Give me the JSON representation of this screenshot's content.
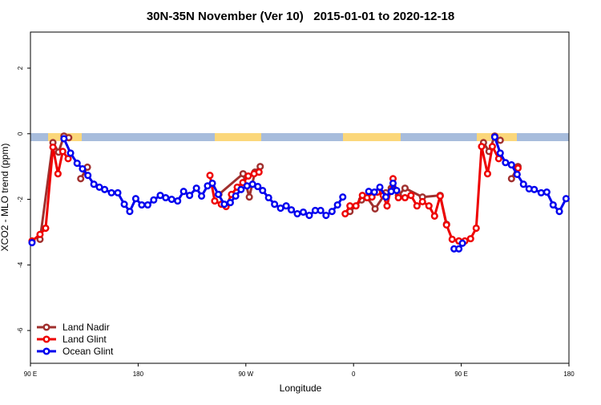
{
  "chart_data": {
    "type": "line",
    "title": "30N-35N November (Ver 10)   2015-01-01 to 2020-12-18",
    "x_label": "Longitude",
    "y_label": "XCO2 - MLO trend (ppm)",
    "xlim": [
      90,
      540
    ],
    "ylim": [
      -7,
      3.1
    ],
    "xticks": [
      {
        "value": 90,
        "label": "90 E"
      },
      {
        "value": 180,
        "label": "180"
      },
      {
        "value": 270,
        "label": "90 W"
      },
      {
        "value": 360,
        "label": "0"
      },
      {
        "value": 450,
        "label": "90 E"
      },
      {
        "value": 540,
        "label": "180"
      }
    ],
    "yticks": [
      -6,
      -4,
      -2,
      0,
      2
    ],
    "legend": "bottom-left",
    "series": [
      {
        "name": "Land Nadir",
        "color": "#a0302e",
        "x": [
          98,
          108.8,
          113.5,
          118,
          122,
          null,
          132,
          137.6,
          null,
          247.5,
          267.7,
          272.9,
          277.6,
          282,
          null,
          357,
          366.7,
          371.4,
          378,
          387,
          391.5,
          397.5,
          403,
          417.6,
          432.4,
          437.7,
          null,
          468.6,
          473.2,
          478,
          482.6,
          null,
          492,
          497.4
        ],
        "values": [
          -3.22,
          -0.27,
          -0.56,
          -0.07,
          -0.12,
          null,
          -1.37,
          -1.02,
          null,
          -1.85,
          -1.22,
          -1.93,
          -1.17,
          -1.0,
          null,
          -2.37,
          -2.02,
          -1.95,
          -2.29,
          -1.8,
          -1.66,
          -1.88,
          -1.66,
          -1.93,
          -1.88,
          -2.76,
          null,
          -0.27,
          -0.54,
          -0.07,
          -0.2,
          null,
          -1.37,
          -1.0
        ]
      },
      {
        "name": "Land Glint",
        "color": "#ee0000",
        "x": [
          91.3,
          98,
          102.7,
          108.8,
          113,
          117,
          121.5,
          null,
          240,
          244,
          249.5,
          253.5,
          258,
          262.8,
          267.5,
          272,
          276.9,
          281,
          null,
          353,
          357,
          362,
          367.4,
          371.4,
          375.4,
          380,
          384.8,
          388,
          393,
          397.5,
          403,
          408,
          413,
          417.6,
          423,
          427.7,
          432.4,
          437.7,
          442.4,
          448,
          453,
          457.8,
          462.5,
          467,
          472,
          476,
          481.3,
          null,
          497.4
        ],
        "values": [
          -3.27,
          -3.07,
          -2.88,
          -0.41,
          -1.22,
          -0.54,
          -0.76,
          null,
          -1.27,
          -2.05,
          -2.15,
          -2.22,
          -1.85,
          -1.63,
          -1.49,
          -1.29,
          -1.22,
          -1.17,
          null,
          -2.44,
          -2.2,
          -2.2,
          -1.88,
          -1.95,
          -1.93,
          -1.78,
          -1.88,
          -2.2,
          -1.37,
          -1.95,
          -1.95,
          -1.88,
          -2.2,
          -2.07,
          -2.2,
          -2.51,
          -1.9,
          -2.78,
          -3.22,
          -3.27,
          -3.27,
          -3.2,
          -2.88,
          -0.39,
          -1.22,
          -0.39,
          -0.76,
          null,
          -1.05
        ]
      },
      {
        "name": "Ocean Glint",
        "color": "#0000ee",
        "x": [
          91.3,
          null,
          118,
          123.5,
          129,
          133.5,
          138,
          143,
          147.6,
          152,
          157.7,
          163,
          168.4,
          173,
          178,
          183,
          188,
          193,
          198.5,
          203,
          208,
          213,
          218,
          223,
          228.7,
          233,
          238,
          242,
          247,
          252,
          257,
          261.5,
          266,
          271,
          275.6,
          280,
          284,
          289,
          294,
          299,
          303.7,
          308,
          313,
          318,
          323,
          328,
          332.5,
          337,
          342,
          346.6,
          351,
          null,
          372.7,
          377.4,
          382,
          387,
          391.5,
          393,
          396,
          null,
          444,
          448,
          451,
          null,
          478,
          482.6,
          487,
          492,
          496.7,
          502,
          506.7,
          511,
          516.8,
          521.5,
          526.8,
          532,
          537.6
        ],
        "values": [
          -3.32,
          null,
          -0.15,
          -0.59,
          -0.9,
          -1.07,
          -1.27,
          -1.54,
          -1.63,
          -1.7,
          -1.8,
          -1.8,
          -2.15,
          -2.37,
          -1.98,
          -2.17,
          -2.17,
          -2.02,
          -1.88,
          -1.95,
          -2.0,
          -2.05,
          -1.76,
          -1.88,
          -1.66,
          -1.9,
          -1.59,
          -1.51,
          -1.85,
          -2.15,
          -2.1,
          -1.9,
          -1.7,
          -1.59,
          -1.54,
          -1.61,
          -1.73,
          -1.95,
          -2.15,
          -2.27,
          -2.2,
          -2.32,
          -2.44,
          -2.39,
          -2.49,
          -2.34,
          -2.34,
          -2.49,
          -2.37,
          -2.17,
          -1.93,
          null,
          -1.76,
          -1.78,
          -1.63,
          -1.93,
          -1.76,
          -1.51,
          -1.73,
          null,
          -3.51,
          -3.51,
          -3.34,
          null,
          -0.1,
          -0.59,
          -0.88,
          -0.95,
          -1.24,
          -1.54,
          -1.68,
          -1.7,
          -1.8,
          -1.78,
          -2.17,
          -2.37,
          -1.98
        ]
      }
    ]
  }
}
